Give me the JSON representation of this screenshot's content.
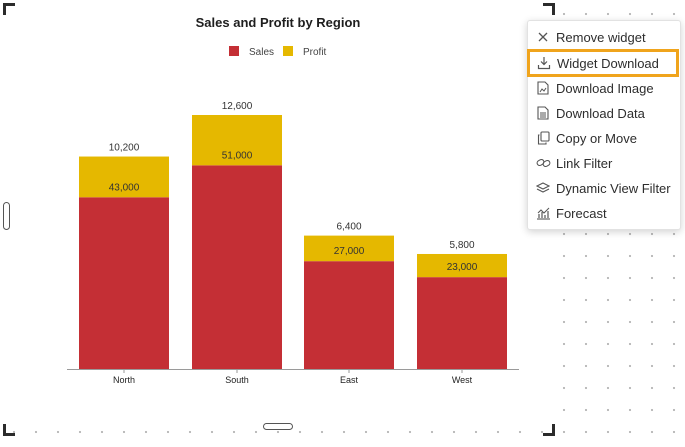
{
  "chart_data": {
    "type": "bar",
    "stacked": true,
    "title": "Sales and Profit by Region",
    "categories": [
      "North",
      "South",
      "East",
      "West"
    ],
    "series": [
      {
        "name": "Sales",
        "values": [
          43000,
          51000,
          27000,
          23000
        ],
        "color": "#c42f35",
        "labels": [
          "43,000",
          "51,000",
          "27,000",
          "23,000"
        ]
      },
      {
        "name": "Profit",
        "values": [
          10200,
          12600,
          6400,
          5800
        ],
        "color": "#e5b800",
        "labels": [
          "10,200",
          "12,600",
          "6,400",
          "5,800"
        ]
      }
    ],
    "legend": "top-center",
    "grid": false
  },
  "menu": {
    "items": [
      {
        "label": "Remove widget",
        "icon": "close-icon"
      },
      {
        "label": "Widget Download",
        "icon": "download-icon",
        "selected": true
      },
      {
        "label": "Download Image",
        "icon": "image-file-icon"
      },
      {
        "label": "Download Data",
        "icon": "data-file-icon"
      },
      {
        "label": "Copy or Move",
        "icon": "copy-icon"
      },
      {
        "label": "Link Filter",
        "icon": "link-icon"
      },
      {
        "label": "Dynamic View Filter",
        "icon": "layers-icon"
      },
      {
        "label": "Forecast",
        "icon": "forecast-icon"
      }
    ]
  },
  "colors": {
    "accent": "#f0a41c"
  }
}
